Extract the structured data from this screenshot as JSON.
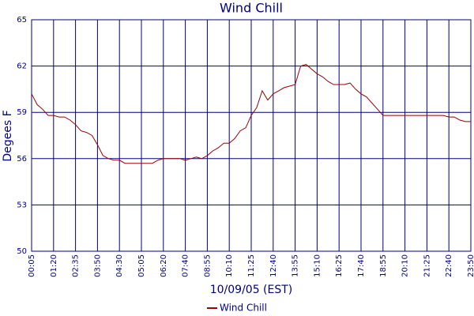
{
  "chart_data": {
    "type": "line",
    "title": "Wind Chill",
    "ylabel": "Degees F",
    "xlabel": "10/09/05 (EST)",
    "categories": [
      "00:05",
      null,
      null,
      null,
      "01:20",
      null,
      null,
      null,
      "02:35",
      null,
      null,
      null,
      "03:50",
      null,
      null,
      null,
      "04:30",
      null,
      null,
      null,
      "05:05",
      null,
      null,
      null,
      "06:20",
      null,
      null,
      null,
      "07:40",
      null,
      null,
      null,
      "08:55",
      null,
      null,
      null,
      "10:10",
      null,
      null,
      null,
      "11:25",
      null,
      null,
      null,
      "12:40",
      null,
      null,
      null,
      "13:55",
      null,
      null,
      null,
      "15:10",
      null,
      null,
      null,
      "16:25",
      null,
      null,
      null,
      "17:40",
      null,
      null,
      null,
      "18:55",
      null,
      null,
      null,
      "20:10",
      null,
      null,
      null,
      "21:25",
      null,
      null,
      null,
      "22:40",
      null,
      null,
      null,
      "23:50"
    ],
    "series": [
      {
        "name": "Wind Chill",
        "color": "#990000",
        "values": [
          60.2,
          59.5,
          59.2,
          58.8,
          58.8,
          58.7,
          58.7,
          58.5,
          58.2,
          57.8,
          57.7,
          57.5,
          56.9,
          56.2,
          56.0,
          55.9,
          55.9,
          55.7,
          55.7,
          55.7,
          55.7,
          55.7,
          55.7,
          55.9,
          56.0,
          56.0,
          56.0,
          56.0,
          55.9,
          56.0,
          56.1,
          56.0,
          56.2,
          56.5,
          56.7,
          57.0,
          57.0,
          57.3,
          57.8,
          58.0,
          58.8,
          59.3,
          60.4,
          59.8,
          60.2,
          60.4,
          60.6,
          60.7,
          60.8,
          62.0,
          62.1,
          61.8,
          61.5,
          61.3,
          61.0,
          60.8,
          60.8,
          60.8,
          60.9,
          60.5,
          60.2,
          60.0,
          59.6,
          59.2,
          58.8,
          58.8,
          58.8,
          58.8,
          58.8,
          58.8,
          58.8,
          58.8,
          58.8,
          58.8,
          58.8,
          58.8,
          58.7,
          58.7,
          58.5,
          58.4,
          58.4
        ]
      }
    ],
    "ylim": [
      50,
      65
    ],
    "yticks": [
      50,
      53,
      56,
      59,
      62,
      65
    ],
    "grid": true
  }
}
